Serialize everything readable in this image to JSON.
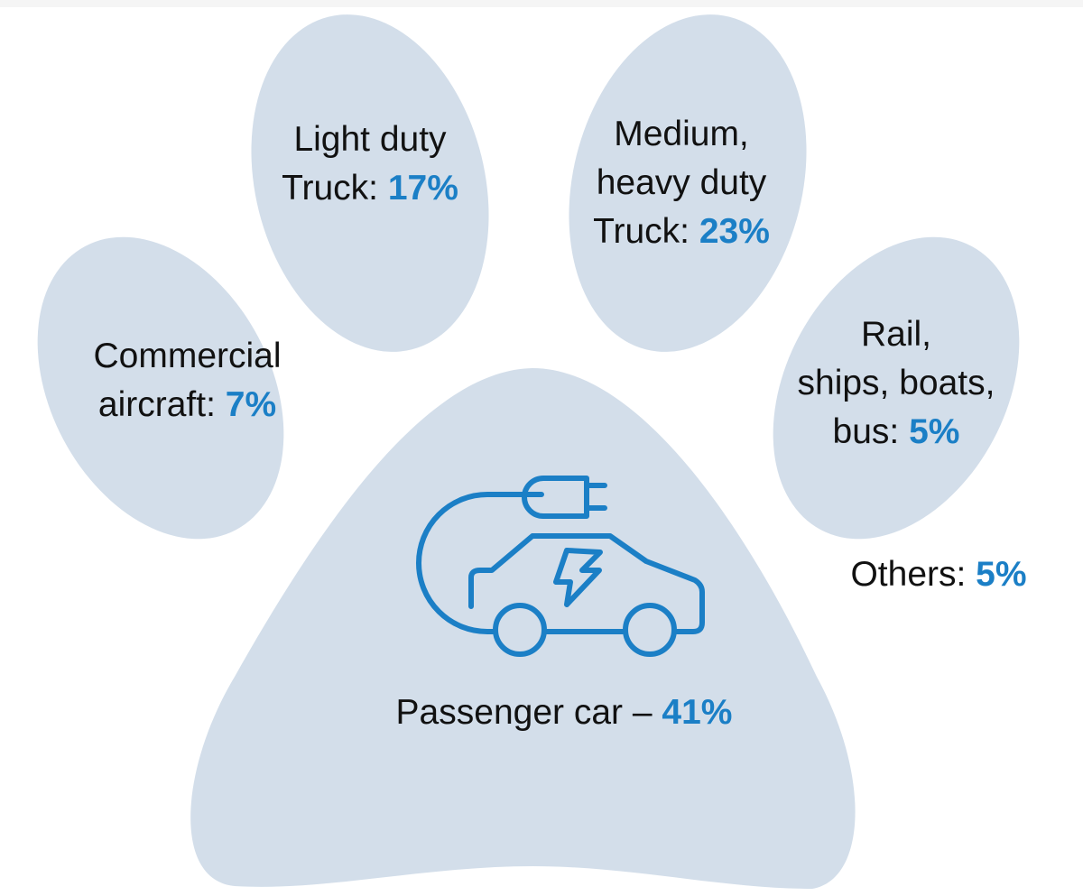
{
  "colors": {
    "pad": "#d3deea",
    "accent": "#1b7fc6",
    "text": "#111111"
  },
  "icon": "electric-car-plug-icon",
  "segments": [
    {
      "label_lines": [
        "Light duty",
        "Truck:"
      ],
      "value": "17%"
    },
    {
      "label_lines": [
        "Medium,",
        "heavy duty",
        "Truck:"
      ],
      "value": "23%"
    },
    {
      "label_lines": [
        "Commercial",
        "aircraft:"
      ],
      "value": "7%"
    },
    {
      "label_lines": [
        "Rail,",
        "ships, boats,",
        "bus:"
      ],
      "value": "5%"
    },
    {
      "label_lines": [
        "Others:"
      ],
      "value": "5%"
    },
    {
      "label_lines": [
        "Passenger car –"
      ],
      "value": "41%"
    }
  ]
}
